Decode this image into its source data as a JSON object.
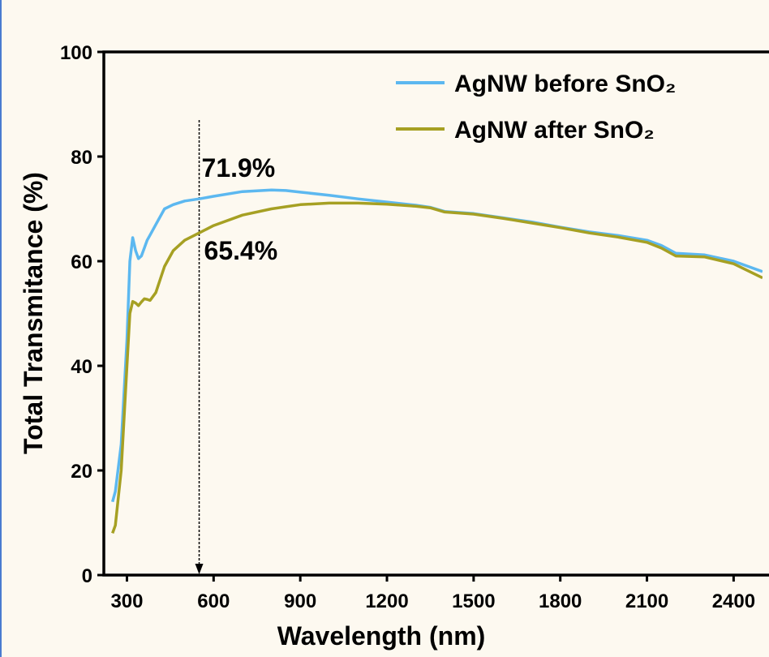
{
  "chart_data": {
    "type": "line",
    "x_label": "Wavelength (nm)",
    "y_label": "Total Transmitance (%)",
    "x": [
      250,
      260,
      280,
      300,
      310,
      320,
      330,
      340,
      350,
      360,
      370,
      380,
      400,
      430,
      460,
      500,
      550,
      600,
      700,
      800,
      850,
      900,
      1000,
      1100,
      1200,
      1300,
      1350,
      1400,
      1500,
      1600,
      1700,
      1800,
      1900,
      2000,
      2100,
      2150,
      2200,
      2300,
      2400,
      2500
    ],
    "series": [
      {
        "name": "AgNW before SnO₂",
        "color": "#5cb8f0",
        "values": [
          14,
          16,
          25,
          45,
          60,
          64.5,
          62,
          60.5,
          61,
          62.5,
          64,
          65,
          67,
          70,
          70.8,
          71.5,
          71.9,
          72.4,
          73.3,
          73.6,
          73.5,
          73.2,
          72.6,
          71.9,
          71.3,
          70.7,
          70.3,
          69.5,
          69.1,
          68.3,
          67.5,
          66.5,
          65.6,
          64.9,
          64,
          63,
          61.5,
          61.2,
          60,
          58
        ]
      },
      {
        "name": "AgNW after SnO₂",
        "color": "#a6a023",
        "values": [
          8,
          9.5,
          20,
          40,
          50,
          52.3,
          52,
          51.5,
          52.2,
          52.8,
          52.7,
          52.5,
          54,
          59,
          62,
          64,
          65.4,
          66.8,
          68.8,
          70,
          70.4,
          70.8,
          71.1,
          71.1,
          70.9,
          70.5,
          70.2,
          69.4,
          69,
          68.2,
          67.3,
          66.4,
          65.4,
          64.6,
          63.6,
          62.5,
          61,
          60.8,
          59.5,
          56.8
        ]
      }
    ],
    "reference_x": 550,
    "annotations": [
      "71.9%",
      "65.4%"
    ],
    "xlim": [
      220,
      2500
    ],
    "xticks": [
      300,
      600,
      900,
      1200,
      1500,
      1800,
      2100,
      2400
    ],
    "ylim": [
      0,
      100
    ],
    "yticks": [
      0,
      20,
      40,
      60,
      80,
      100
    ],
    "legend": "upper right"
  }
}
